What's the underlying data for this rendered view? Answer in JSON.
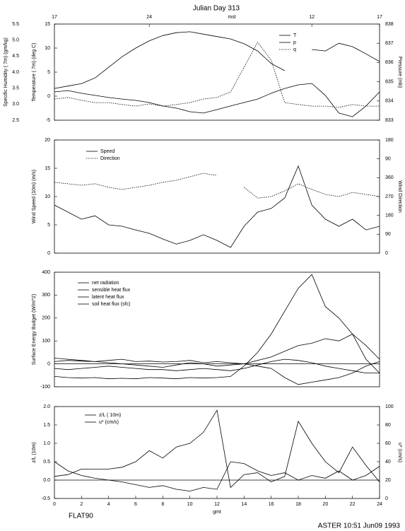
{
  "title": "Julian Day 313",
  "footer_left": "FLAT90",
  "footer_right": "ASTER 10:51 Jun09 1993",
  "chart_data": [
    {
      "type": "line",
      "x": [
        0,
        1,
        2,
        3,
        4,
        5,
        6,
        7,
        8,
        9,
        10,
        11,
        12,
        13,
        14,
        15,
        16,
        17,
        18,
        19,
        20,
        21,
        22,
        23,
        24
      ],
      "xlim": [
        0,
        24
      ],
      "x2label": "mst",
      "x2ticks": [
        {
          "value": 0,
          "label": "17"
        },
        {
          "value": 7,
          "label": "24"
        },
        {
          "value": 19,
          "label": "12"
        },
        {
          "value": 24,
          "label": "17"
        }
      ],
      "ylabel": "Temperature ( 7m) (deg C)",
      "ylim": [
        -5,
        15
      ],
      "yticks": [
        -5,
        0,
        5,
        10,
        15
      ],
      "y3label": "Specific Humidity ( 7m) (gm/kg)",
      "y3lim": [
        2.5,
        5.5
      ],
      "y3ticks": [
        2.5,
        {
          "value": 3,
          "label": "3.0"
        },
        3.5,
        {
          "value": 4,
          "label": "4.0"
        },
        4.5,
        {
          "value": 5,
          "label": "5.0"
        },
        5.5
      ],
      "y2label": "Pressure (mb)",
      "y2lim": [
        833,
        838
      ],
      "y2ticks": [
        833,
        834,
        835,
        836,
        837,
        838
      ],
      "series": [
        {
          "name": "T",
          "color": "#000",
          "dash": false,
          "values": [
            1.6,
            2.1,
            2.6,
            3.8,
            6.0,
            8.2,
            10.0,
            11.5,
            12.6,
            13.2,
            13.4,
            12.9,
            12.4,
            11.9,
            10.9,
            9.4,
            6.8,
            5.3,
            null,
            9.7,
            9.4,
            11.0,
            10.3,
            8.8,
            7.2
          ]
        },
        {
          "name": "p",
          "color": "#000",
          "dash": false,
          "axis": "y2",
          "values": [
            834.47,
            834.54,
            834.4,
            834.29,
            834.18,
            834.1,
            834.03,
            833.92,
            833.74,
            833.63,
            833.44,
            833.37,
            833.55,
            833.74,
            833.92,
            834.1,
            834.4,
            834.65,
            834.84,
            834.91,
            834.29,
            833.37,
            833.18,
            833.74,
            834.47
          ]
        },
        {
          "name": "q",
          "color": "#000",
          "dash": true,
          "axis": "y3",
          "values": [
            3.16,
            3.21,
            3.12,
            3.05,
            3.05,
            2.99,
            2.94,
            3.01,
            2.94,
            2.99,
            3.05,
            3.16,
            3.21,
            3.38,
            4.15,
            4.93,
            4.37,
            3.05,
            2.99,
            2.94,
            2.94,
            2.9,
            2.99,
            2.94,
            2.94
          ]
        }
      ]
    },
    {
      "type": "line",
      "x": [
        0,
        1,
        2,
        3,
        4,
        5,
        6,
        7,
        8,
        9,
        10,
        11,
        12,
        13,
        14,
        15,
        16,
        17,
        18,
        19,
        20,
        21,
        22,
        23,
        24
      ],
      "xlim": [
        0,
        24
      ],
      "ylabel": "Wind Speed (10m) (m/s)",
      "ylim": [
        0,
        20
      ],
      "yticks": [
        0,
        5,
        10,
        15,
        20
      ],
      "y2label": "Wind Direction",
      "y2lim": [
        0,
        540
      ],
      "y2ticks": [
        0,
        90,
        180,
        270,
        360,
        {
          "value": 450,
          "label": "90"
        },
        {
          "value": 540,
          "label": "180"
        }
      ],
      "series": [
        {
          "name": "Speed",
          "color": "#000",
          "dash": false,
          "values": [
            8.5,
            7.25,
            6.0,
            6.6,
            5.0,
            4.75,
            4.1,
            3.5,
            2.5,
            1.6,
            2.25,
            3.25,
            2.25,
            1.0,
            4.75,
            7.25,
            7.9,
            9.75,
            15.4,
            8.5,
            6.0,
            4.75,
            6.0,
            4.1,
            4.75
          ]
        },
        {
          "name": "Direction",
          "color": "#000",
          "dash": true,
          "axis": "y2",
          "values": [
            338,
            331,
            324,
            331,
            314,
            304,
            314,
            324,
            338,
            348,
            365,
            381,
            371,
            null,
            314,
            263,
            270,
            297,
            331,
            304,
            280,
            270,
            290,
            280,
            270
          ]
        }
      ]
    },
    {
      "type": "line",
      "x": [
        0,
        1,
        2,
        3,
        4,
        5,
        6,
        7,
        8,
        9,
        10,
        11,
        12,
        13,
        14,
        15,
        16,
        17,
        18,
        19,
        20,
        21,
        22,
        23,
        24
      ],
      "xlim": [
        0,
        24
      ],
      "ylabel": "Surface Energy Budget (W/m^2)",
      "ylim": [
        -100,
        400
      ],
      "yticks": [
        -100,
        0,
        100,
        200,
        300,
        400
      ],
      "zero_line": true,
      "series": [
        {
          "name": "net radiation",
          "color": "#000",
          "dash": false,
          "values": [
            -55,
            -60,
            -62,
            -60,
            -65,
            -63,
            -65,
            -60,
            -62,
            -65,
            -60,
            -62,
            -60,
            -55,
            -10,
            50,
            130,
            230,
            330,
            390,
            250,
            200,
            130,
            20,
            -40
          ]
        },
        {
          "name": "sensible heat flux",
          "color": "#000",
          "dash": false,
          "values": [
            25,
            20,
            15,
            10,
            5,
            0,
            -5,
            -10,
            -15,
            -5,
            5,
            0,
            -10,
            -5,
            0,
            15,
            30,
            55,
            80,
            90,
            110,
            100,
            130,
            80,
            20
          ]
        },
        {
          "name": "latent heat flux",
          "color": "#000",
          "dash": false,
          "values": [
            -20,
            -25,
            -20,
            -15,
            -10,
            -15,
            -20,
            -25,
            -25,
            -30,
            -25,
            -20,
            -25,
            -30,
            -20,
            -5,
            10,
            20,
            15,
            5,
            -10,
            -20,
            -30,
            -40,
            -40
          ]
        },
        {
          "name": "soil heat flux (sfc)",
          "color": "#000",
          "dash": false,
          "values": [
            10,
            15,
            12,
            10,
            15,
            20,
            10,
            12,
            8,
            10,
            15,
            5,
            10,
            5,
            0,
            -10,
            -20,
            -60,
            -90,
            -80,
            -70,
            -60,
            -40,
            -10,
            10
          ]
        }
      ]
    },
    {
      "type": "line",
      "x": [
        0,
        1,
        2,
        3,
        4,
        5,
        6,
        7,
        8,
        9,
        10,
        11,
        12,
        13,
        14,
        15,
        16,
        17,
        18,
        19,
        20,
        21,
        22,
        23,
        24
      ],
      "xlim": [
        0,
        24
      ],
      "xlabel": "gmt",
      "xticks": [
        0,
        2,
        4,
        6,
        8,
        10,
        12,
        14,
        16,
        18,
        20,
        22,
        24
      ],
      "ylabel": "z/L (10m)",
      "ylim": [
        -0.5,
        2
      ],
      "yticks": [
        -0.5,
        {
          "value": 0,
          "label": "0.0"
        },
        0.5,
        {
          "value": 1,
          "label": "1.0"
        },
        1.5,
        {
          "value": 2,
          "label": "2.0"
        }
      ],
      "y2label": "u* (cm/s)",
      "y2lim": [
        0,
        100
      ],
      "y2ticks": [
        0,
        20,
        40,
        60,
        80,
        100
      ],
      "zero_line": true,
      "series": [
        {
          "name": "z/L ( 10m)",
          "color": "#000",
          "dash": false,
          "values": [
            0.1,
            0.15,
            0.3,
            0.3,
            0.3,
            0.35,
            0.5,
            0.8,
            0.6,
            0.9,
            1.0,
            1.3,
            1.9,
            -0.2,
            0.15,
            0.2,
            -0.05,
            0.1,
            1.6,
            1.0,
            0.5,
            0.2,
            0.9,
            0.4,
            -0.05
          ]
        },
        {
          "name": "u* (cm/s)",
          "color": "#000",
          "dash": false,
          "axis": "y2",
          "values": [
            40,
            30,
            25,
            22,
            20,
            18,
            15,
            12,
            14,
            10,
            8,
            12,
            10,
            40,
            38,
            30,
            25,
            28,
            20,
            25,
            22,
            30,
            20,
            25,
            35
          ]
        }
      ]
    }
  ]
}
